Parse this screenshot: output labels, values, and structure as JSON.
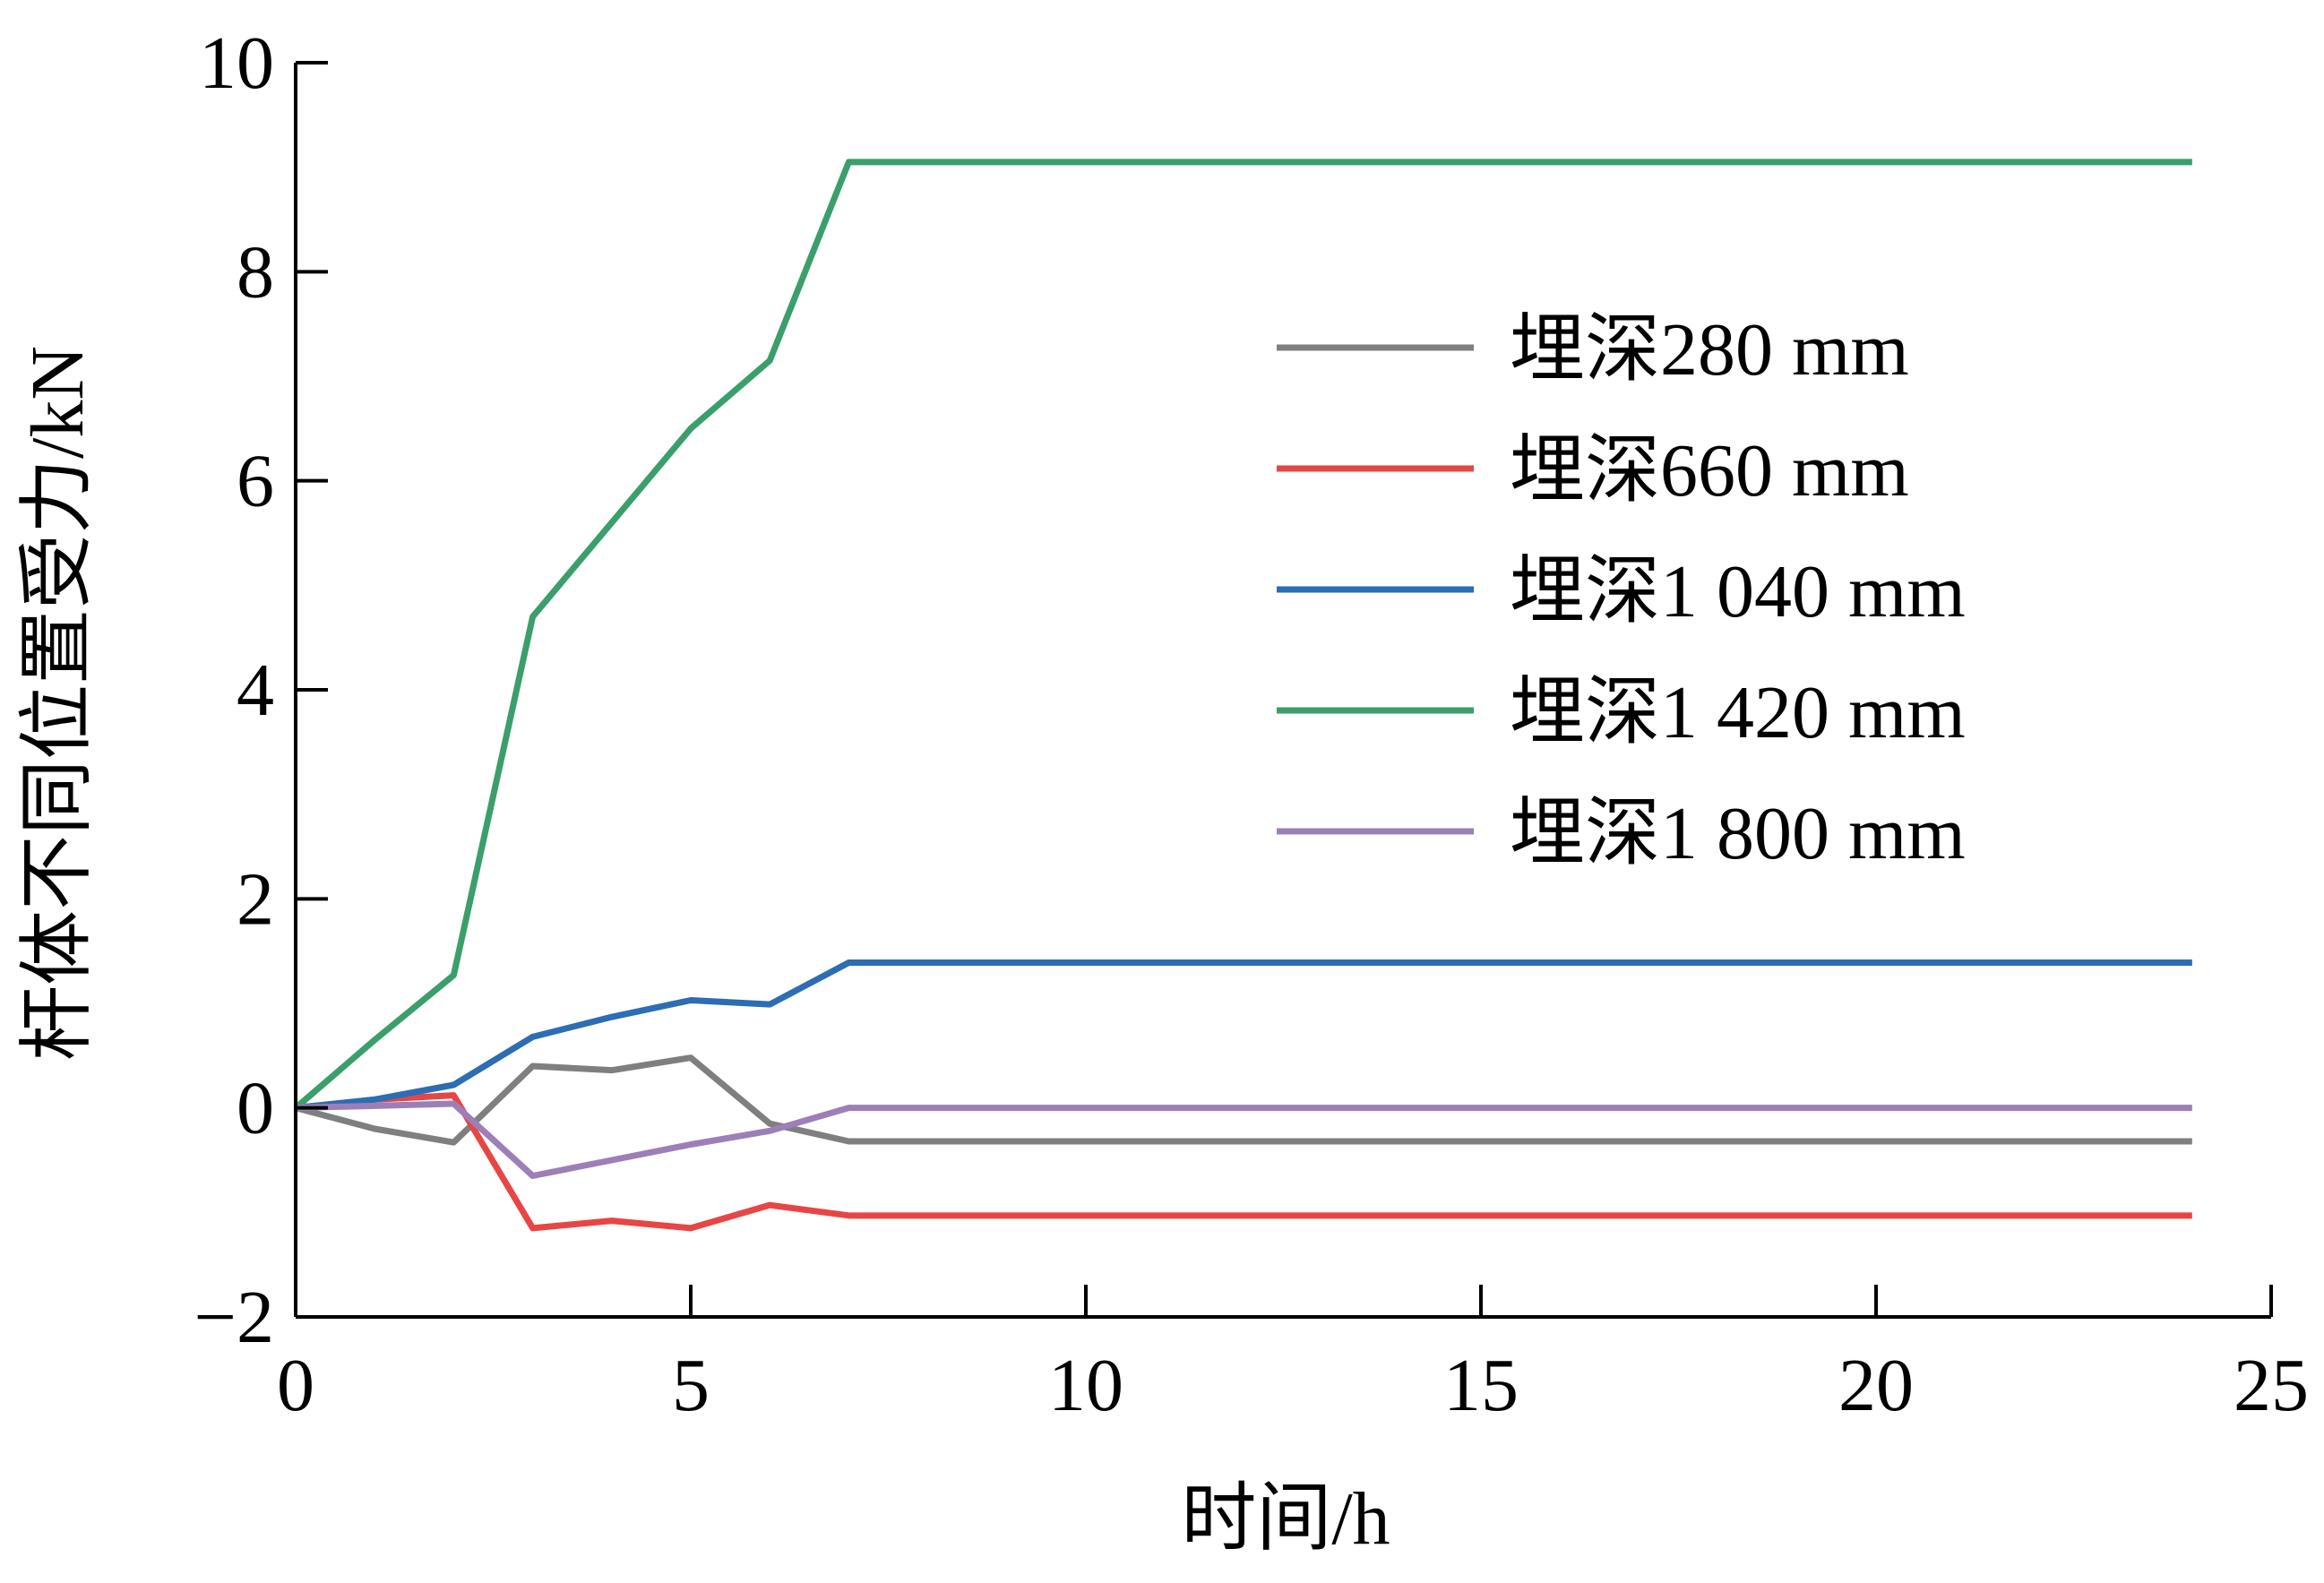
{
  "chart_data": {
    "type": "line",
    "xlabel": "时间/h",
    "ylabel": "杆体不同位置受力/kN",
    "xlim": [
      0,
      25
    ],
    "ylim": [
      -2,
      10
    ],
    "xticks": [
      0,
      5,
      10,
      15,
      20,
      25
    ],
    "yticks": [
      -2,
      0,
      2,
      4,
      6,
      8,
      10
    ],
    "xtick_labels": [
      "0",
      "5",
      "10",
      "15",
      "20",
      "25"
    ],
    "ytick_labels": [
      "−2",
      "0",
      "2",
      "4",
      "6",
      "8",
      "10"
    ],
    "grid": false,
    "legend_position": "right",
    "x": [
      0,
      1,
      2,
      3,
      4,
      5,
      6,
      7,
      24
    ],
    "series": [
      {
        "name": "埋深280 mm",
        "color": "#7f7f7f",
        "values": [
          0,
          -0.2,
          -0.33,
          0.4,
          0.36,
          0.48,
          -0.15,
          -0.32,
          -0.32
        ]
      },
      {
        "name": "埋深660 mm",
        "color": "#e84545",
        "values": [
          0,
          0.08,
          0.12,
          -1.15,
          -1.08,
          -1.15,
          -0.93,
          -1.03,
          -1.03
        ]
      },
      {
        "name": "埋深1 040 mm",
        "color": "#2c6db3",
        "values": [
          0,
          0.08,
          0.22,
          0.68,
          0.87,
          1.03,
          0.99,
          1.39,
          1.39
        ]
      },
      {
        "name": "埋深1 420 mm",
        "color": "#3a9f6a",
        "values": [
          0,
          0.65,
          1.27,
          4.7,
          5.6,
          6.5,
          7.15,
          9.05,
          9.05
        ]
      },
      {
        "name": "埋深1 800 mm",
        "color": "#9d7fb8",
        "values": [
          0,
          0.02,
          0.04,
          -0.65,
          -0.5,
          -0.35,
          -0.22,
          0,
          0
        ]
      }
    ]
  }
}
